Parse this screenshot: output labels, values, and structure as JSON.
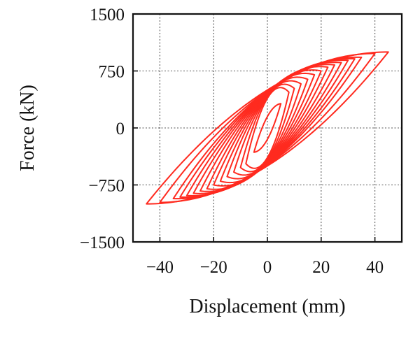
{
  "chart_data": {
    "type": "line",
    "title": "",
    "xlabel": "Displacement (mm)",
    "ylabel": "Force (kN)",
    "xlim": [
      -50,
      50
    ],
    "ylim": [
      -1500,
      1500
    ],
    "xticks": [
      -40,
      -20,
      0,
      20,
      40
    ],
    "yticks": [
      -1500,
      -750,
      0,
      750,
      1500
    ],
    "xtick_labels": [
      "−40",
      "−20",
      "0",
      "20",
      "40"
    ],
    "ytick_labels": [
      "−1500",
      "−750",
      "0",
      "750",
      "1500"
    ],
    "grid": true,
    "grid_style": "dotted",
    "legend": "none",
    "series_color": "#ff2a1f",
    "series": [
      {
        "loops": [
          {
            "peak_displacement": 5,
            "peak_force": 320,
            "intercept_force": 150
          },
          {
            "peak_displacement": 8,
            "peak_force": 470,
            "intercept_force": 390
          },
          {
            "peak_displacement": 10,
            "peak_force": 520,
            "intercept_force": 410
          },
          {
            "peak_displacement": 12.5,
            "peak_force": 580,
            "intercept_force": 420
          },
          {
            "peak_displacement": 15,
            "peak_force": 640,
            "intercept_force": 430
          },
          {
            "peak_displacement": 17.5,
            "peak_force": 700,
            "intercept_force": 440
          },
          {
            "peak_displacement": 20,
            "peak_force": 750,
            "intercept_force": 450
          },
          {
            "peak_displacement": 22.5,
            "peak_force": 800,
            "intercept_force": 460
          },
          {
            "peak_displacement": 25,
            "peak_force": 830,
            "intercept_force": 465
          },
          {
            "peak_displacement": 27.5,
            "peak_force": 860,
            "intercept_force": 470
          },
          {
            "peak_displacement": 30,
            "peak_force": 890,
            "intercept_force": 475
          },
          {
            "peak_displacement": 32.5,
            "peak_force": 910,
            "intercept_force": 480
          },
          {
            "peak_displacement": 35,
            "peak_force": 930,
            "intercept_force": 485
          },
          {
            "peak_displacement": 40,
            "peak_force": 980,
            "intercept_force": 490
          },
          {
            "peak_displacement": 45,
            "peak_force": 1000,
            "intercept_force": 500
          }
        ]
      }
    ]
  }
}
